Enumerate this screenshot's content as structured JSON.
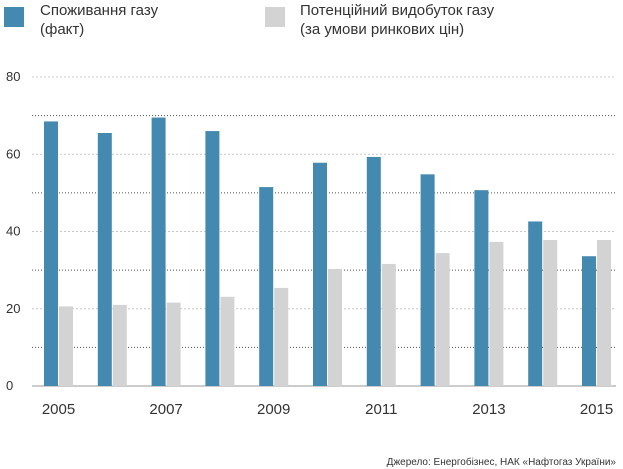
{
  "chart_data": {
    "type": "bar",
    "title": "",
    "xlabel": "",
    "ylabel": "",
    "ylim": [
      0,
      80
    ],
    "yticks": [
      0,
      20,
      40,
      60,
      80
    ],
    "grid": "horizontal dotted",
    "legend_placement": "top",
    "categories": [
      "2005",
      "2006",
      "2007",
      "2008",
      "2009",
      "2010",
      "2011",
      "2012",
      "2013",
      "2014",
      "2015"
    ],
    "category_labels": [
      "2005",
      "",
      "2007",
      "",
      "2009",
      "",
      "2011",
      "",
      "2013",
      "",
      "2015"
    ],
    "series": [
      {
        "name_lines": [
          "Споживання газу",
          "(факт)"
        ],
        "color": "#4489b0",
        "values": [
          68.5,
          65.5,
          69.5,
          66,
          51.5,
          57.8,
          59.3,
          54.8,
          50.7,
          42.6,
          33.6
        ]
      },
      {
        "name_lines": [
          "Потенційний видобуток газу",
          "(за умови ринкових цін)"
        ],
        "color": "#d3d3d3",
        "values": [
          20.6,
          21,
          21.6,
          23.1,
          25.4,
          30.3,
          31.6,
          34.4,
          37.3,
          37.8,
          37.8
        ]
      }
    ],
    "source": "Джерело: Енергобізнес, НАК «Нафтогаз України»"
  }
}
